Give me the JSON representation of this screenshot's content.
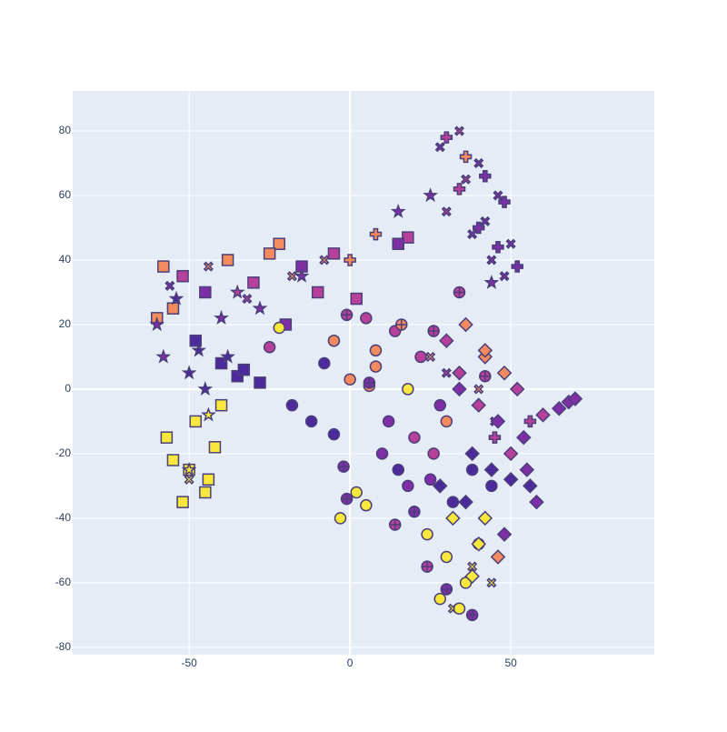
{
  "chart_data": {
    "type": "scatter",
    "xlim": [
      -86.2,
      94.6
    ],
    "ylim": [
      -82.3,
      92.4
    ],
    "xticks": [
      -50,
      0,
      50
    ],
    "yticks": [
      -80,
      -60,
      -40,
      -20,
      0,
      20,
      40,
      60,
      80
    ],
    "grid": true,
    "background": "#e5ecf6",
    "outline": "#4a3f7a",
    "series": [
      {
        "symbol": "square",
        "x": [
          -58,
          -52,
          -45,
          -38,
          -30,
          -22,
          -15,
          -10,
          -55,
          -48,
          -40,
          -35,
          -28,
          -20,
          -57,
          -50,
          -45,
          -55,
          -42,
          -48,
          -52,
          -33,
          -40,
          2,
          18,
          -60,
          -25,
          -5,
          15,
          -44
        ],
        "values": [
          38,
          35,
          30,
          40,
          33,
          45,
          38,
          30,
          25,
          15,
          8,
          4,
          2,
          20,
          -15,
          -25,
          -32,
          -22,
          -18,
          -10,
          -35,
          6,
          -5,
          28,
          47,
          22,
          42,
          42,
          45,
          -28
        ],
        "colors": [
          "#f48b5e",
          "#b6409a",
          "#7e2fa6",
          "#f48b5e",
          "#b6409a",
          "#f48b5e",
          "#7e2fa6",
          "#b6409a",
          "#f48b5e",
          "#4c2a9c",
          "#4c2a9c",
          "#4c2a9c",
          "#4c2a9c",
          "#7e2fa6",
          "#f8e83c",
          "#f8e83c",
          "#f8e83c",
          "#f8e83c",
          "#f8e83c",
          "#f8e83c",
          "#f8e83c",
          "#4c2a9c",
          "#f8e83c",
          "#b6409a",
          "#b6409a",
          "#f48b5e",
          "#f48b5e",
          "#b6409a",
          "#7e2fa6",
          "#f8e83c"
        ]
      },
      {
        "symbol": "x",
        "x": [
          -56,
          -44,
          -32,
          -18,
          -8,
          28,
          34,
          40,
          46,
          30,
          38,
          44,
          48,
          36,
          42,
          50,
          25,
          30,
          40,
          45,
          -50,
          38,
          44,
          32
        ],
        "values": [
          32,
          38,
          28,
          35,
          40,
          75,
          80,
          70,
          60,
          55,
          48,
          40,
          35,
          65,
          52,
          45,
          10,
          5,
          0,
          -10,
          -28,
          -55,
          -60,
          -68
        ],
        "colors": [
          "#7e2fa6",
          "#f48b5e",
          "#b6409a",
          "#f48b5e",
          "#f48b5e",
          "#7e2fa6",
          "#b6409a",
          "#7e2fa6",
          "#7e2fa6",
          "#b6409a",
          "#7e2fa6",
          "#7e2fa6",
          "#7e2fa6",
          "#b6409a",
          "#7e2fa6",
          "#7e2fa6",
          "#f48b5e",
          "#b6409a",
          "#f48b5e",
          "#7e2fa6",
          "#f8e83c",
          "#f8e83c",
          "#f8e83c",
          "#f8e83c"
        ]
      },
      {
        "symbol": "star",
        "x": [
          -60,
          -54,
          -47,
          -40,
          -35,
          -28,
          -50,
          -45,
          -38,
          -58,
          -44,
          -15,
          15,
          25,
          44,
          -50
        ],
        "values": [
          20,
          28,
          12,
          22,
          30,
          25,
          5,
          0,
          10,
          10,
          -8,
          35,
          55,
          60,
          33,
          -25
        ],
        "colors": [
          "#7e2fa6",
          "#4c2a9c",
          "#4c2a9c",
          "#7e2fa6",
          "#b6409a",
          "#7e2fa6",
          "#4c2a9c",
          "#4c2a9c",
          "#4c2a9c",
          "#7e2fa6",
          "#f8e83c",
          "#7e2fa6",
          "#7e2fa6",
          "#7e2fa6",
          "#7e2fa6",
          "#f8e83c"
        ]
      },
      {
        "symbol": "cross",
        "x": [
          30,
          36,
          42,
          48,
          34,
          40,
          46,
          52,
          56,
          45,
          0,
          8
        ],
        "values": [
          78,
          72,
          66,
          58,
          62,
          50,
          44,
          38,
          -10,
          -15,
          40,
          48
        ],
        "colors": [
          "#b6409a",
          "#f48b5e",
          "#7e2fa6",
          "#7e2fa6",
          "#b6409a",
          "#7e2fa6",
          "#7e2fa6",
          "#7e2fa6",
          "#b6409a",
          "#b6409a",
          "#f48b5e",
          "#f48b5e"
        ]
      },
      {
        "symbol": "circle",
        "x": [
          -22,
          -8,
          -5,
          0,
          5,
          8,
          12,
          18,
          22,
          28,
          10,
          15,
          20,
          25,
          30,
          24,
          30,
          36,
          40,
          28,
          34,
          5,
          2,
          -3,
          8,
          14,
          -18,
          -12,
          18,
          26,
          32,
          38,
          44,
          -25,
          6,
          -5
        ],
        "values": [
          19,
          8,
          15,
          3,
          22,
          12,
          -10,
          0,
          10,
          -5,
          -20,
          -25,
          -15,
          -28,
          -10,
          -45,
          -52,
          -60,
          -48,
          -65,
          -68,
          -36,
          -32,
          -40,
          7,
          18,
          -5,
          -10,
          -30,
          -20,
          -35,
          -25,
          -30,
          13,
          1,
          -14
        ],
        "colors": [
          "#f8e83c",
          "#4c2a9c",
          "#f48b5e",
          "#f48b5e",
          "#b6409a",
          "#f48b5e",
          "#7e2fa6",
          "#f8e83c",
          "#b6409a",
          "#7e2fa6",
          "#7e2fa6",
          "#4c2a9c",
          "#b6409a",
          "#7e2fa6",
          "#f48b5e",
          "#f8e83c",
          "#f8e83c",
          "#f8e83c",
          "#f48b5e",
          "#f8e83c",
          "#f8e83c",
          "#f8e83c",
          "#f8e83c",
          "#f8e83c",
          "#f48b5e",
          "#b6409a",
          "#4c2a9c",
          "#4c2a9c",
          "#7e2fa6",
          "#b6409a",
          "#4c2a9c",
          "#4c2a9c",
          "#4c2a9c",
          "#b6409a",
          "#f48b5e",
          "#4c2a9c"
        ]
      },
      {
        "symbol": "circle-cross",
        "x": [
          -1,
          -2,
          -1,
          6,
          16,
          26,
          34,
          20,
          30,
          38,
          24,
          14,
          42
        ],
        "values": [
          23,
          -24,
          -34,
          2,
          20,
          18,
          30,
          -38,
          -62,
          -70,
          -55,
          -42,
          4
        ],
        "colors": [
          "#b6409a",
          "#7e2fa6",
          "#7e2fa6",
          "#7e2fa6",
          "#f48b5e",
          "#b6409a",
          "#b6409a",
          "#7e2fa6",
          "#7e2fa6",
          "#7e2fa6",
          "#b6409a",
          "#b6409a",
          "#b6409a"
        ]
      },
      {
        "symbol": "diamond",
        "x": [
          30,
          36,
          42,
          48,
          52,
          34,
          40,
          46,
          54,
          38,
          44,
          50,
          56,
          58,
          60,
          65,
          68,
          70,
          28,
          36,
          42,
          48,
          32,
          40,
          46,
          34,
          42,
          38,
          50,
          55
        ],
        "values": [
          15,
          20,
          10,
          5,
          0,
          0,
          -5,
          -10,
          -15,
          -20,
          -25,
          -28,
          -30,
          -35,
          -8,
          -6,
          -4,
          -3,
          -30,
          -35,
          -40,
          -45,
          -40,
          -48,
          -52,
          5,
          12,
          -58,
          -20,
          -25
        ],
        "colors": [
          "#b6409a",
          "#f48b5e",
          "#f48b5e",
          "#f48b5e",
          "#b6409a",
          "#7e2fa6",
          "#b6409a",
          "#7e2fa6",
          "#7e2fa6",
          "#4c2a9c",
          "#4c2a9c",
          "#4c2a9c",
          "#4c2a9c",
          "#7e2fa6",
          "#b6409a",
          "#7e2fa6",
          "#7e2fa6",
          "#7e2fa6",
          "#4c2a9c",
          "#4c2a9c",
          "#f8e83c",
          "#7e2fa6",
          "#f8e83c",
          "#f8e83c",
          "#f48b5e",
          "#b6409a",
          "#f48b5e",
          "#f8e83c",
          "#b6409a",
          "#7e2fa6"
        ]
      }
    ]
  }
}
